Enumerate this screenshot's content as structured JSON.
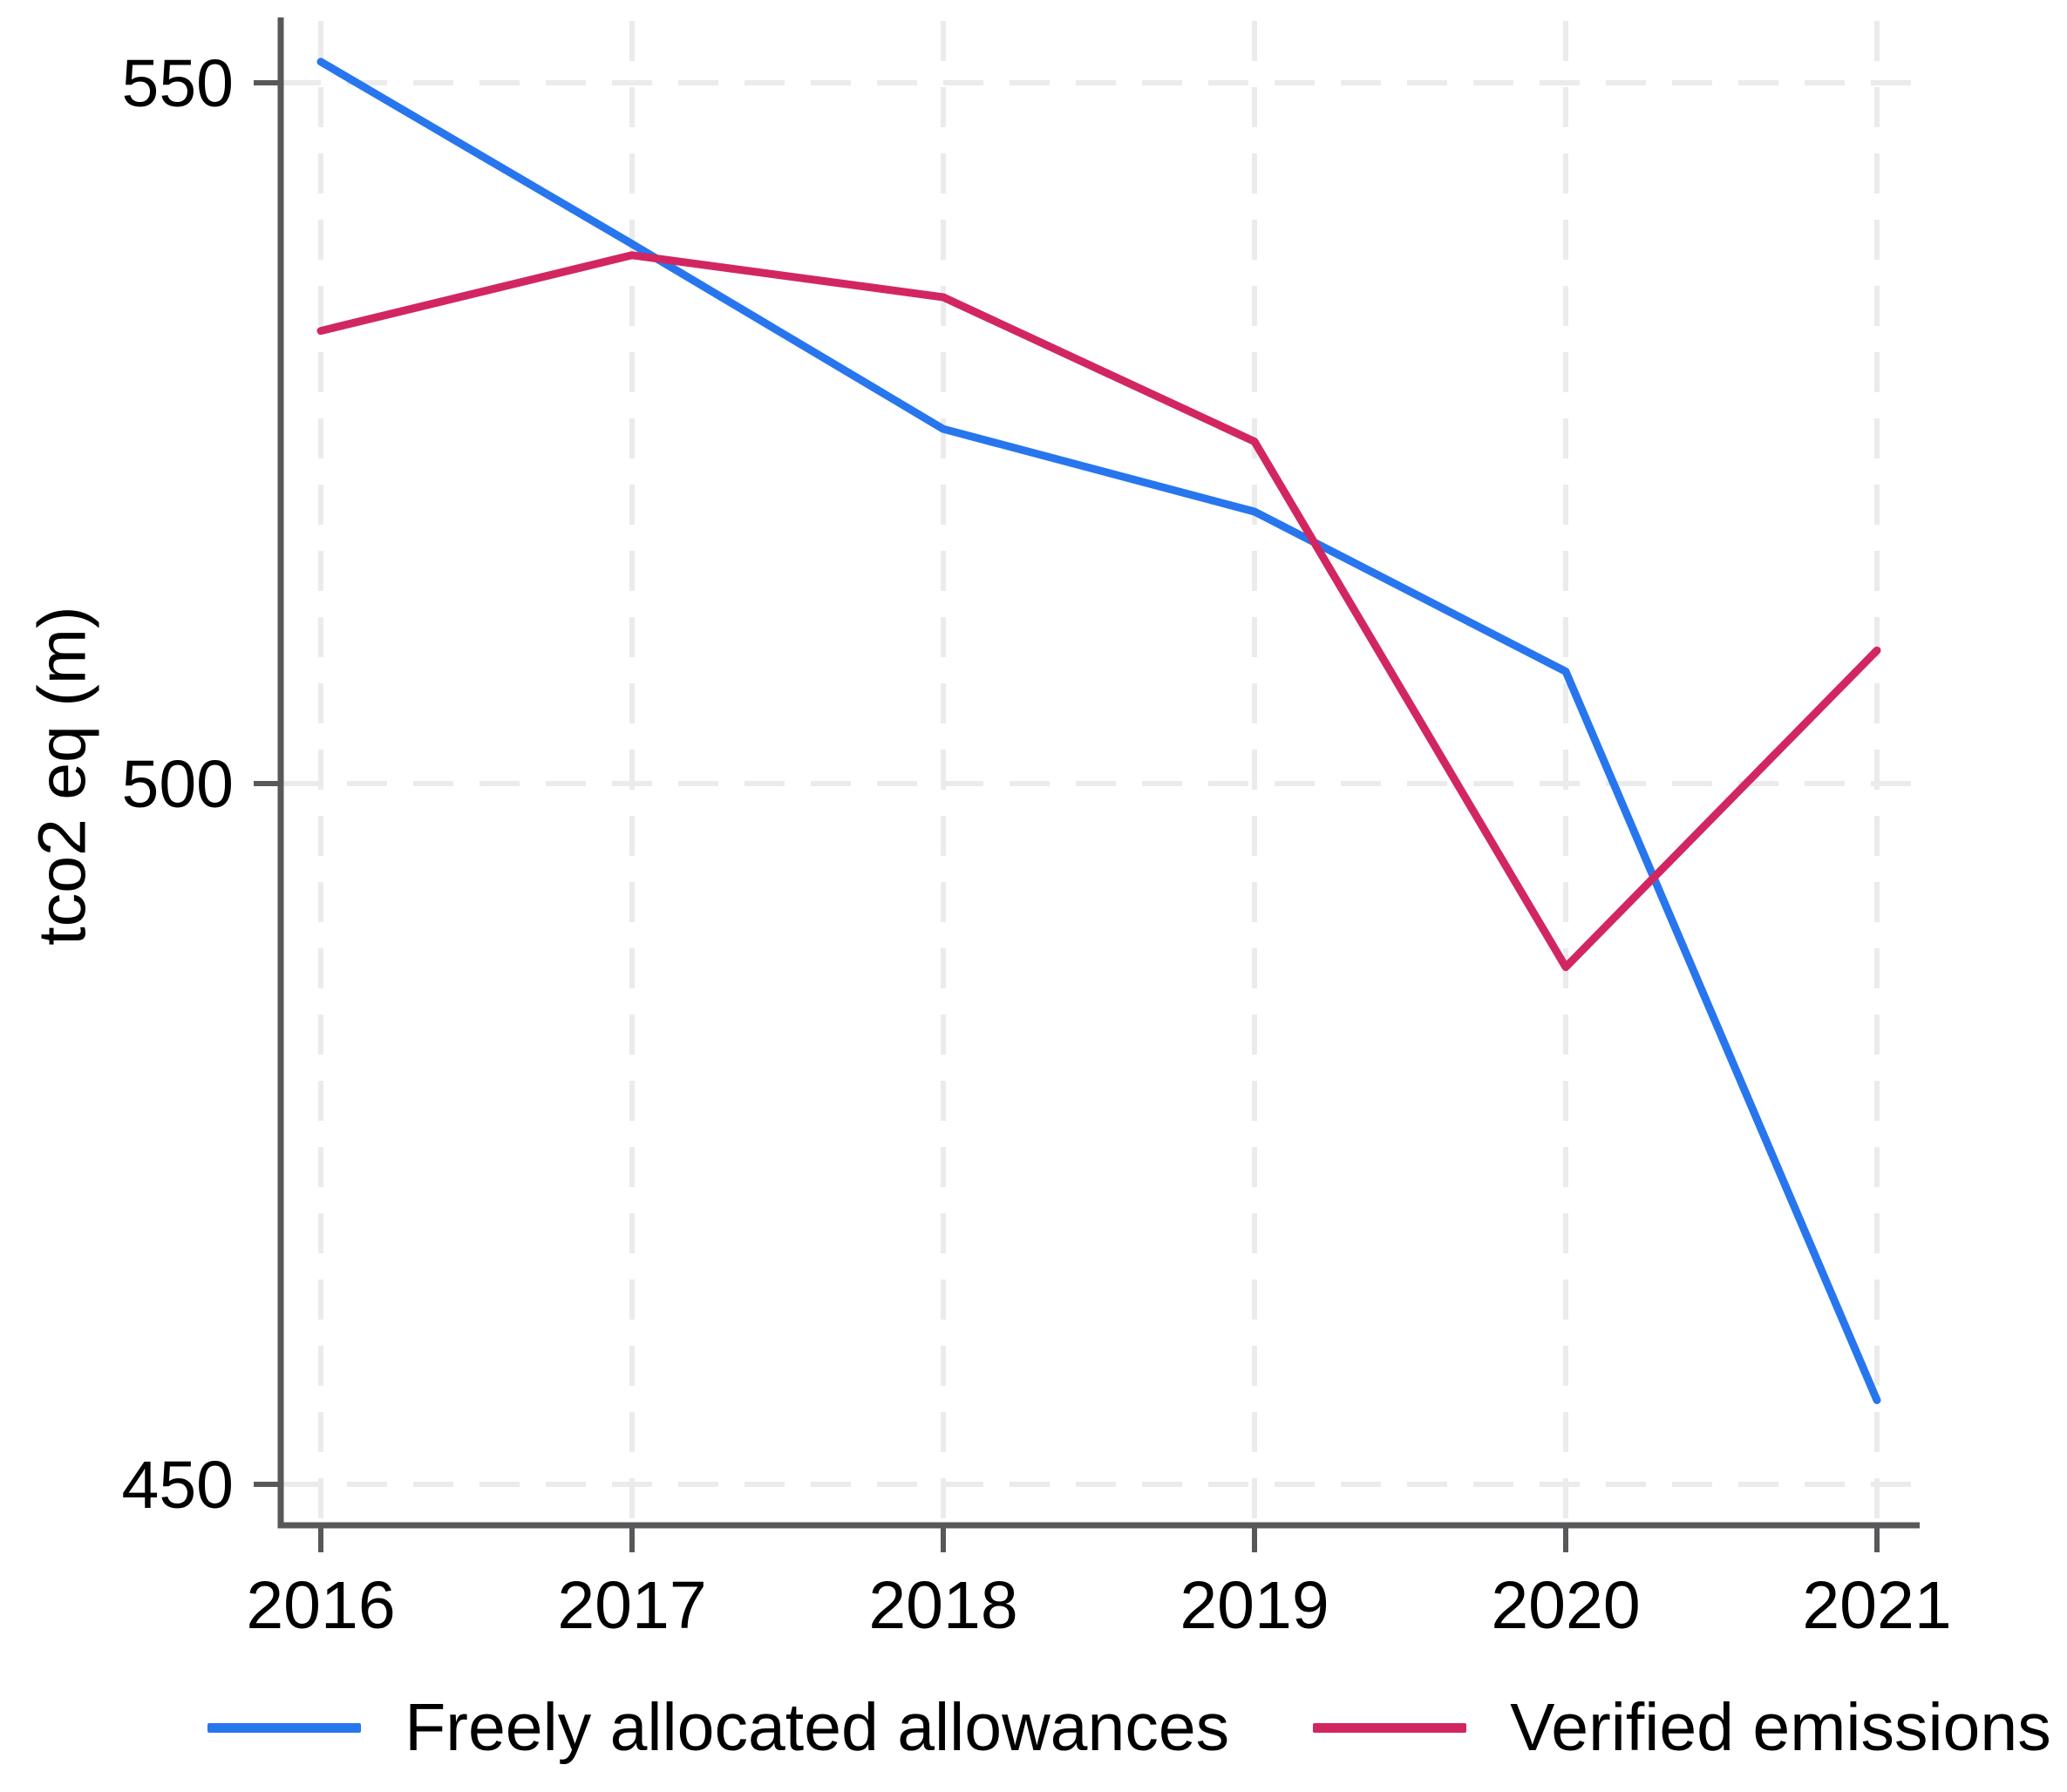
{
  "colors": {
    "background": "#ffffff",
    "axis": "#58585b",
    "grid": "#ebebeb",
    "tick_label": "#000000",
    "series_blue": "#2776ee",
    "series_red": "#d22663"
  },
  "chart_data": {
    "type": "line",
    "title": "",
    "xlabel": "",
    "ylabel": "tco2 eq (m)",
    "x": [
      2016,
      2017,
      2018,
      2019,
      2020,
      2021
    ],
    "x_tick_labels": [
      "2016",
      "2017",
      "2018",
      "2019",
      "2020",
      "2021"
    ],
    "y_ticks": [
      450,
      500,
      550
    ],
    "y_tick_labels": [
      "450",
      "500",
      "550"
    ],
    "xlim": [
      2016,
      2021
    ],
    "ylim": [
      447,
      555
    ],
    "grid": "dashed light-gray horizontal and vertical gridlines at every tick",
    "legend_position": "bottom",
    "series": [
      {
        "name": "Freely allocated allowances",
        "color": "#2776ee",
        "values": [
          551.5,
          538.5,
          525.3,
          519.4,
          508.0,
          456.0
        ]
      },
      {
        "name": "Verified emissions",
        "color": "#d22663",
        "values": [
          532.3,
          537.7,
          534.7,
          524.4,
          486.9,
          509.5
        ]
      }
    ]
  }
}
